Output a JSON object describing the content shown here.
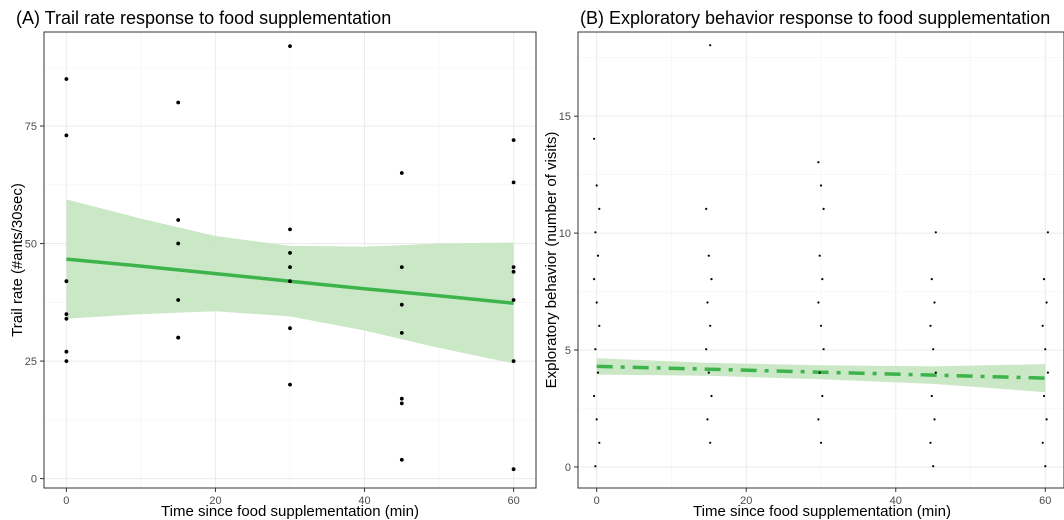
{
  "chart_data": [
    {
      "type": "scatter",
      "title": "(A) Trail rate response to food supplementation",
      "xlabel": "Time since food supplementation (min)",
      "ylabel": "Trail rate (#ants/30sec)",
      "xlim": [
        -3,
        63
      ],
      "ylim": [
        -2,
        95
      ],
      "xticks": [
        0,
        20,
        40,
        60
      ],
      "yticks": [
        0,
        25,
        50,
        75
      ],
      "grid": true,
      "points": [
        {
          "x": 0,
          "y": 85
        },
        {
          "x": 0,
          "y": 73
        },
        {
          "x": 0,
          "y": 42
        },
        {
          "x": 0,
          "y": 35
        },
        {
          "x": 0,
          "y": 34
        },
        {
          "x": 0,
          "y": 27
        },
        {
          "x": 0,
          "y": 25
        },
        {
          "x": 15,
          "y": 80
        },
        {
          "x": 15,
          "y": 55
        },
        {
          "x": 15,
          "y": 50
        },
        {
          "x": 15,
          "y": 38
        },
        {
          "x": 15,
          "y": 30
        },
        {
          "x": 15,
          "y": 30
        },
        {
          "x": 30,
          "y": 92
        },
        {
          "x": 30,
          "y": 53
        },
        {
          "x": 30,
          "y": 48
        },
        {
          "x": 30,
          "y": 45
        },
        {
          "x": 30,
          "y": 42
        },
        {
          "x": 30,
          "y": 32
        },
        {
          "x": 30,
          "y": 20
        },
        {
          "x": 45,
          "y": 65
        },
        {
          "x": 45,
          "y": 45
        },
        {
          "x": 45,
          "y": 37
        },
        {
          "x": 45,
          "y": 31
        },
        {
          "x": 45,
          "y": 17
        },
        {
          "x": 45,
          "y": 16
        },
        {
          "x": 45,
          "y": 4
        },
        {
          "x": 60,
          "y": 72
        },
        {
          "x": 60,
          "y": 63
        },
        {
          "x": 60,
          "y": 45
        },
        {
          "x": 60,
          "y": 44
        },
        {
          "x": 60,
          "y": 38
        },
        {
          "x": 60,
          "y": 25
        },
        {
          "x": 60,
          "y": 2
        }
      ],
      "fit": {
        "style": "solid",
        "color": "#3cb44b",
        "band_color": "#c7e6c3",
        "x": [
          0,
          10,
          20,
          30,
          40,
          50,
          60
        ],
        "y": [
          46.7,
          45.2,
          43.6,
          42.0,
          40.4,
          38.9,
          37.3
        ],
        "lower": [
          34.0,
          35.0,
          35.6,
          34.5,
          31.5,
          27.8,
          24.5
        ],
        "upper": [
          59.4,
          55.3,
          51.6,
          49.5,
          49.3,
          50.0,
          50.2
        ]
      }
    },
    {
      "type": "scatter",
      "title": "(B) Exploratory behavior response to food supplementation",
      "xlabel": "Time since food supplementation (min)",
      "ylabel": "Exploratory behavior (number of visits)",
      "xlim": [
        -2.5,
        62.5
      ],
      "ylim": [
        -0.9,
        18.6
      ],
      "xticks": [
        0,
        20,
        40,
        60
      ],
      "yticks": [
        0,
        5,
        10,
        15
      ],
      "grid": true,
      "points": [
        {
          "x": 0,
          "y": 14
        },
        {
          "x": 0,
          "y": 12
        },
        {
          "x": 0,
          "y": 11
        },
        {
          "x": 0,
          "y": 10
        },
        {
          "x": 0,
          "y": 9
        },
        {
          "x": 0,
          "y": 8
        },
        {
          "x": 0,
          "y": 7
        },
        {
          "x": 0,
          "y": 6
        },
        {
          "x": 0,
          "y": 5
        },
        {
          "x": 0,
          "y": 4
        },
        {
          "x": 0,
          "y": 3
        },
        {
          "x": 0,
          "y": 2
        },
        {
          "x": 0,
          "y": 1
        },
        {
          "x": 0,
          "y": 0
        },
        {
          "x": 15,
          "y": 18
        },
        {
          "x": 15,
          "y": 11
        },
        {
          "x": 15,
          "y": 9
        },
        {
          "x": 15,
          "y": 8
        },
        {
          "x": 15,
          "y": 7
        },
        {
          "x": 15,
          "y": 6
        },
        {
          "x": 15,
          "y": 5
        },
        {
          "x": 15,
          "y": 4
        },
        {
          "x": 15,
          "y": 3
        },
        {
          "x": 15,
          "y": 2
        },
        {
          "x": 15,
          "y": 1
        },
        {
          "x": 30,
          "y": 13
        },
        {
          "x": 30,
          "y": 12
        },
        {
          "x": 30,
          "y": 11
        },
        {
          "x": 30,
          "y": 9
        },
        {
          "x": 30,
          "y": 8
        },
        {
          "x": 30,
          "y": 7
        },
        {
          "x": 30,
          "y": 6
        },
        {
          "x": 30,
          "y": 5
        },
        {
          "x": 30,
          "y": 4
        },
        {
          "x": 30,
          "y": 3
        },
        {
          "x": 30,
          "y": 2
        },
        {
          "x": 30,
          "y": 1
        },
        {
          "x": 45,
          "y": 10
        },
        {
          "x": 45,
          "y": 8
        },
        {
          "x": 45,
          "y": 7
        },
        {
          "x": 45,
          "y": 6
        },
        {
          "x": 45,
          "y": 5
        },
        {
          "x": 45,
          "y": 4
        },
        {
          "x": 45,
          "y": 3
        },
        {
          "x": 45,
          "y": 2
        },
        {
          "x": 45,
          "y": 1
        },
        {
          "x": 45,
          "y": 0
        },
        {
          "x": 60,
          "y": 10
        },
        {
          "x": 60,
          "y": 8
        },
        {
          "x": 60,
          "y": 7
        },
        {
          "x": 60,
          "y": 6
        },
        {
          "x": 60,
          "y": 5
        },
        {
          "x": 60,
          "y": 4
        },
        {
          "x": 60,
          "y": 3
        },
        {
          "x": 60,
          "y": 2
        },
        {
          "x": 60,
          "y": 1
        },
        {
          "x": 60,
          "y": 0
        }
      ],
      "fit": {
        "style": "dashdot",
        "color": "#3cb44b",
        "band_color": "#c7e6c3",
        "x": [
          0,
          15,
          30,
          45,
          60
        ],
        "y": [
          4.3,
          4.18,
          4.05,
          3.93,
          3.8
        ],
        "lower": [
          3.95,
          3.9,
          3.75,
          3.55,
          3.2
        ],
        "upper": [
          4.65,
          4.45,
          4.35,
          4.3,
          4.4
        ]
      }
    }
  ]
}
